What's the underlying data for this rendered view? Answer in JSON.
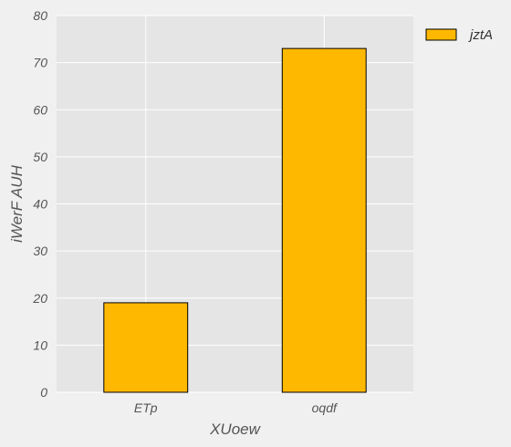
{
  "chart_data": {
    "type": "bar",
    "categories": [
      "ETp",
      "oqdf"
    ],
    "series": [
      {
        "name": "jztA",
        "values": [
          19,
          73
        ],
        "color": "#ffb800"
      }
    ],
    "xlabel": "XUoew",
    "ylabel": "iWerF AUH",
    "ylim": [
      0,
      80
    ],
    "yticks": [
      0,
      10,
      20,
      30,
      40,
      50,
      60,
      70,
      80
    ],
    "grid": true,
    "legend_position": "top-right outside",
    "colors": {
      "plot_background": "#e5e5e5",
      "figure_background": "#f0f0f0",
      "grid": "#ffffff",
      "bar_edge": "#000000"
    }
  }
}
